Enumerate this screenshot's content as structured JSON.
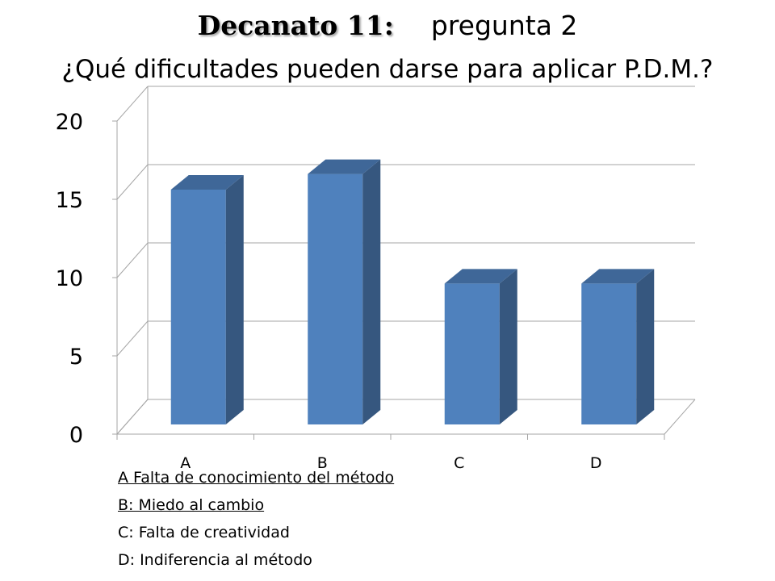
{
  "title": {
    "bold": "Decanato 11:",
    "rest": "pregunta 2",
    "question": "¿Qué dificultades pueden darse para aplicar P.D.M.?"
  },
  "legend": [
    "A Falta de conocimiento del método",
    "B: Miedo al cambio",
    "C: Falta de creatividad",
    "D: Indiferencia  al método"
  ],
  "colors": {
    "bar_front": "#4F81BD",
    "bar_side": "#36577F",
    "bar_top": "#3F6798",
    "grid": "#A6A6A6"
  },
  "chart_data": {
    "type": "bar",
    "categories": [
      "A",
      "B",
      "C",
      "D"
    ],
    "values": [
      15,
      16,
      9,
      9
    ],
    "ylim": [
      0,
      20
    ],
    "yticks": [
      0,
      5,
      10,
      15,
      20
    ],
    "grid": true,
    "three_d": true
  }
}
